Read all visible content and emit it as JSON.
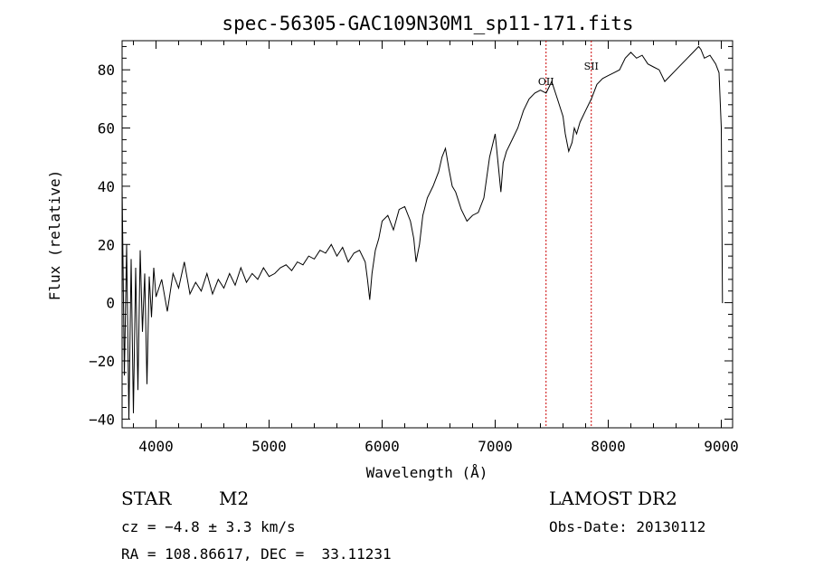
{
  "chart_data": {
    "type": "line",
    "title": "spec-56305-GAC109N30M1_sp11-171.fits",
    "xlabel": "Wavelength (Å)",
    "ylabel": "Flux (relative)",
    "xlim": [
      3700,
      9100
    ],
    "ylim": [
      -43,
      90
    ],
    "xticks": [
      4000,
      5000,
      6000,
      7000,
      8000,
      9000
    ],
    "xtick_labels": [
      "4000",
      "5000",
      "6000",
      "7000",
      "8000",
      "9000"
    ],
    "yticks": [
      -40,
      -20,
      0,
      20,
      40,
      60,
      80
    ],
    "ytick_labels": [
      "−40",
      "−20",
      "0",
      "20",
      "40",
      "60",
      "80"
    ],
    "grid": false,
    "series": [
      {
        "x": [
          3700,
          3720,
          3740,
          3760,
          3780,
          3800,
          3820,
          3840,
          3860,
          3880,
          3900,
          3920,
          3940,
          3960,
          3980,
          4000,
          4050,
          4100,
          4150,
          4200,
          4250,
          4300,
          4350,
          4400,
          4450,
          4500,
          4550,
          4600,
          4650,
          4700,
          4750,
          4800,
          4850,
          4900,
          4950,
          5000,
          5050,
          5100,
          5150,
          5200,
          5250,
          5300,
          5350,
          5400,
          5450,
          5500,
          5550,
          5600,
          5650,
          5700,
          5750,
          5800,
          5850,
          5870,
          5890,
          5910,
          5940,
          5970,
          6000,
          6050,
          6100,
          6150,
          6200,
          6250,
          6280,
          6300,
          6330,
          6360,
          6400,
          6450,
          6500,
          6530,
          6560,
          6590,
          6620,
          6650,
          6700,
          6750,
          6800,
          6850,
          6900,
          6950,
          7000,
          7030,
          7050,
          7070,
          7100,
          7150,
          7200,
          7250,
          7300,
          7350,
          7400,
          7450,
          7500,
          7550,
          7600,
          7620,
          7650,
          7680,
          7700,
          7720,
          7750,
          7800,
          7850,
          7900,
          7950,
          8000,
          8050,
          8100,
          8150,
          8200,
          8250,
          8300,
          8350,
          8400,
          8450,
          8500,
          8550,
          8600,
          8650,
          8700,
          8750,
          8800,
          8820,
          8850,
          8900,
          8950,
          8980,
          9000,
          9010,
          9015
        ],
        "y": [
          40,
          -25,
          20,
          -40,
          15,
          -38,
          12,
          -30,
          18,
          -10,
          10,
          -28,
          9,
          -5,
          12,
          2,
          8,
          -3,
          10,
          5,
          14,
          3,
          7,
          4,
          10,
          3,
          8,
          5,
          10,
          6,
          12,
          7,
          10,
          8,
          12,
          9,
          10,
          12,
          13,
          11,
          14,
          13,
          16,
          15,
          18,
          17,
          20,
          16,
          19,
          14,
          17,
          18,
          14,
          8,
          1,
          10,
          18,
          22,
          28,
          30,
          25,
          32,
          33,
          28,
          22,
          14,
          20,
          30,
          36,
          40,
          45,
          50,
          53,
          46,
          40,
          38,
          32,
          28,
          30,
          31,
          36,
          50,
          58,
          46,
          38,
          48,
          52,
          56,
          60,
          66,
          70,
          72,
          73,
          72,
          76,
          70,
          64,
          58,
          52,
          55,
          60,
          58,
          62,
          66,
          70,
          75,
          77,
          78,
          79,
          80,
          84,
          86,
          84,
          85,
          82,
          81,
          80,
          76,
          78,
          80,
          82,
          84,
          86,
          88,
          87,
          84,
          85,
          82,
          79,
          60,
          0,
          0
        ]
      }
    ],
    "vlines": [
      {
        "x": 7450,
        "label": "OII",
        "color": "#cc0000"
      },
      {
        "x": 7850,
        "label": "SII",
        "color": "#cc0000"
      }
    ]
  },
  "info": {
    "class_label": "STAR",
    "subclass_label": "M2",
    "cz_text": "cz = −4.8 ± 3.3 km/s",
    "radec_text": "RA = 108.86617, DEC =  33.11231",
    "survey_label": "LAMOST DR2",
    "obs_date_text": "Obs-Date: 20130112"
  },
  "colors": {
    "spectrum": "#000000",
    "marker_lines": "#cc0000"
  }
}
